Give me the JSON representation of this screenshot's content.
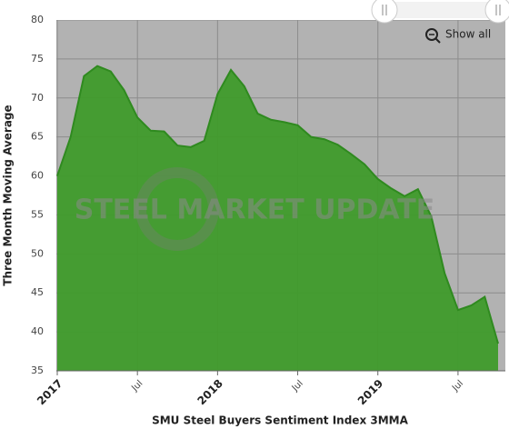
{
  "chart_data": {
    "type": "area",
    "x_label": "SMU Steel Buyers Sentiment Index 3MMA",
    "y_label": "Three Month Moving Average",
    "watermark": "STEEL MARKET UPDATE",
    "reset_button": "Show all",
    "color": "#3f9b2b",
    "line_color": "#2f8a1f",
    "x": [
      "2017-01",
      "2017-02",
      "2017-03",
      "2017-04",
      "2017-05",
      "2017-06",
      "2017-07",
      "2017-08",
      "2017-09",
      "2017-10",
      "2017-11",
      "2017-12",
      "2018-01",
      "2018-02",
      "2018-03",
      "2018-04",
      "2018-05",
      "2018-06",
      "2018-07",
      "2018-08",
      "2018-09",
      "2018-10",
      "2018-11",
      "2018-12",
      "2019-01",
      "2019-02",
      "2019-03",
      "2019-04",
      "2019-05",
      "2019-06",
      "2019-07",
      "2019-08",
      "2019-09",
      "2019-10"
    ],
    "values": [
      60,
      65,
      72.8,
      74.1,
      73.4,
      71,
      67.5,
      65.8,
      65.7,
      63.9,
      63.7,
      64.5,
      70.5,
      73.6,
      71.5,
      68,
      67.2,
      66.9,
      66.5,
      65,
      64.7,
      64,
      62.8,
      61.5,
      59.6,
      58.4,
      57.4,
      58.3,
      54.8,
      47.5,
      42.8,
      43.4,
      44.5,
      38.5
    ],
    "xlim": [
      "2017-01",
      "2019-10"
    ],
    "xticks": [
      {
        "value": "2017-01",
        "label": "2017"
      },
      {
        "value": "2017-07",
        "label": "Jul"
      },
      {
        "value": "2018-01",
        "label": "2018"
      },
      {
        "value": "2018-07",
        "label": "Jul"
      },
      {
        "value": "2019-01",
        "label": "2019"
      },
      {
        "value": "2019-07",
        "label": "Jul"
      }
    ],
    "ylim": [
      35,
      80
    ],
    "yticks": [
      35,
      40,
      45,
      50,
      55,
      60,
      65,
      70,
      75,
      80
    ],
    "grid": true
  }
}
